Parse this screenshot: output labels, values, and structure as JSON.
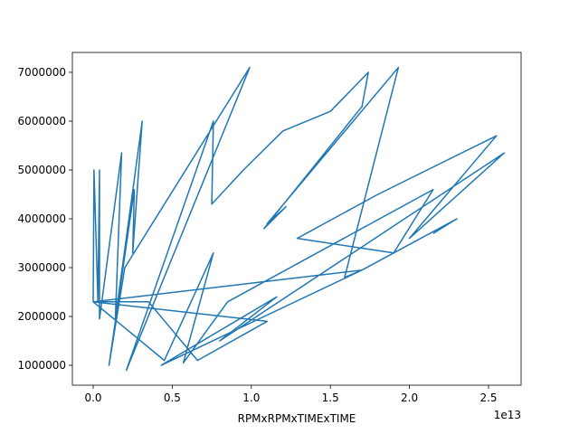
{
  "chart_data": {
    "type": "line",
    "xlabel": "RPMxRPMxTIMExTIME",
    "x_offset_label": "1e13",
    "color": "#1f77b4",
    "x": [
      0,
      50000000000.0,
      300000000000.0,
      400000000000.0,
      400000000000.0,
      1800000000000.0,
      1400000000000.0,
      3100000000000.0,
      2500000000000.0,
      2600000000000.0,
      1000000000000.0,
      2000000000000.0,
      9900000000000.0,
      2100000000000.0,
      7600000000000.0,
      7500000000000.0,
      9500000000000.0,
      12000000000000.0,
      15000000000000.0,
      17400000000000.0,
      17000000000000.0,
      10800000000000.0,
      12200000000000.0,
      11000000000000.0,
      19300000000000.0,
      15900000000000.0,
      17000000000000.0,
      0,
      3500000000000.0,
      6600000000000.0,
      11000000000000.0,
      0,
      4500000000000.0,
      7600000000000.0,
      5700000000000.0,
      8500000000000.0,
      21500000000000.0,
      19000000000000.0,
      12900000000000.0,
      18000000000000.0,
      25500000000000.0,
      20000000000000.0,
      26000000000000.0,
      8000000000000.0,
      11600000000000.0,
      4300000000000.0,
      17000000000000.0,
      23000000000000.0,
      21500000000000.0
    ],
    "values": [
      2300000,
      5000000,
      2300000,
      5000000,
      1950000,
      5350000,
      1950000,
      6000000,
      3300000,
      4600000,
      1000000,
      3000000,
      7100000,
      900000,
      6000000,
      4300000,
      5000000,
      5800000,
      6200000,
      7000000,
      6300000,
      3800000,
      4250000,
      3900000,
      7100000,
      2800000,
      2950000,
      2300000,
      2300000,
      1100000,
      1900000,
      2300000,
      1100000,
      3300000,
      1050000,
      2300000,
      4600000,
      3300000,
      3600000,
      4500000,
      5700000,
      3600000,
      5350000,
      1500000,
      2400000,
      1000000,
      2950000,
      4000000,
      3700000
    ],
    "xlim": [
      -1316000000000.0,
      27060000000000.0
    ],
    "ylim": [
      593000,
      7407000
    ],
    "xticks": [
      {
        "value": 0,
        "label": "0.0"
      },
      {
        "value": 5000000000000.0,
        "label": "0.5"
      },
      {
        "value": 10000000000000.0,
        "label": "1.0"
      },
      {
        "value": 15000000000000.0,
        "label": "1.5"
      },
      {
        "value": 20000000000000.0,
        "label": "2.0"
      },
      {
        "value": 25000000000000.0,
        "label": "2.5"
      }
    ],
    "yticks": [
      1000000,
      2000000,
      3000000,
      4000000,
      5000000,
      6000000,
      7000000
    ]
  }
}
